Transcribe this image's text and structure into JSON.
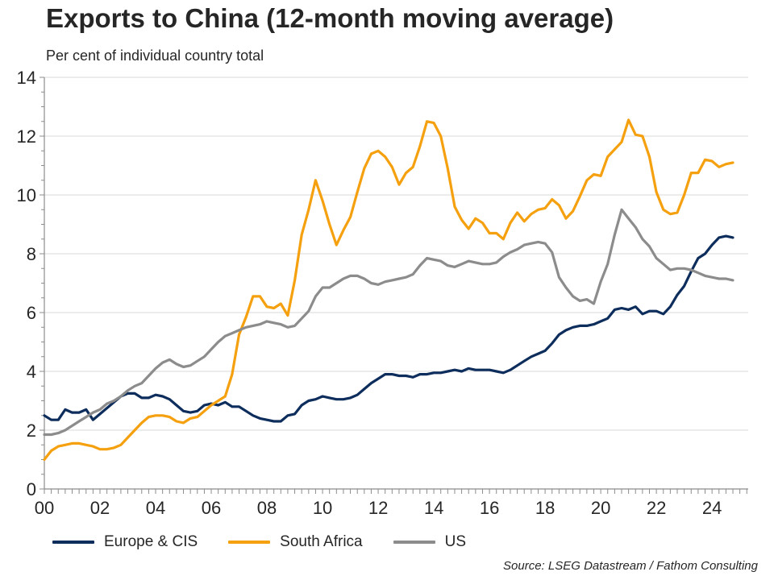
{
  "title": "Exports to China (12-month moving average)",
  "subtitle": "Per cent of individual country total",
  "source": "Source: LSEG Datastream / Fathom Consulting",
  "colors": {
    "europe": "#0d2d5c",
    "south_africa": "#f5a00f",
    "us": "#8c8c8c",
    "grid": "#d9d9d9",
    "axis": "#8c8c8c",
    "text": "#262626"
  },
  "chart_data": {
    "type": "line",
    "title": "Exports to China (12-month moving average)",
    "subtitle": "Per cent of individual country total",
    "xlabel": "",
    "ylabel": "",
    "ylim": [
      0,
      14
    ],
    "xlim": [
      2000,
      2025.3
    ],
    "yticks": [
      "0",
      "2",
      "4",
      "6",
      "8",
      "10",
      "12",
      "14"
    ],
    "xticks": [
      "00",
      "02",
      "04",
      "06",
      "08",
      "10",
      "12",
      "14",
      "16",
      "18",
      "20",
      "22",
      "24"
    ],
    "grid": "horizontal",
    "legend": "bottom",
    "series": [
      {
        "name": "Europe & CIS",
        "color": "#0d2d5c",
        "x": [
          2000.0,
          2000.25,
          2000.5,
          2000.75,
          2001.0,
          2001.25,
          2001.5,
          2001.75,
          2002.0,
          2002.25,
          2002.5,
          2002.75,
          2003.0,
          2003.25,
          2003.5,
          2003.75,
          2004.0,
          2004.25,
          2004.5,
          2004.75,
          2005.0,
          2005.25,
          2005.5,
          2005.75,
          2006.0,
          2006.25,
          2006.5,
          2006.75,
          2007.0,
          2007.25,
          2007.5,
          2007.75,
          2008.0,
          2008.25,
          2008.5,
          2008.75,
          2009.0,
          2009.25,
          2009.5,
          2009.75,
          2010.0,
          2010.25,
          2010.5,
          2010.75,
          2011.0,
          2011.25,
          2011.5,
          2011.75,
          2012.0,
          2012.25,
          2012.5,
          2012.75,
          2013.0,
          2013.25,
          2013.5,
          2013.75,
          2014.0,
          2014.25,
          2014.5,
          2014.75,
          2015.0,
          2015.25,
          2015.5,
          2015.75,
          2016.0,
          2016.25,
          2016.5,
          2016.75,
          2017.0,
          2017.25,
          2017.5,
          2017.75,
          2018.0,
          2018.25,
          2018.5,
          2018.75,
          2019.0,
          2019.25,
          2019.5,
          2019.75,
          2020.0,
          2020.25,
          2020.5,
          2020.75,
          2021.0,
          2021.25,
          2021.5,
          2021.75,
          2022.0,
          2022.25,
          2022.5,
          2022.75,
          2023.0,
          2023.25,
          2023.5,
          2023.75,
          2024.0,
          2024.25,
          2024.5,
          2024.75
        ],
        "values": [
          2.5,
          2.35,
          2.35,
          2.7,
          2.6,
          2.6,
          2.7,
          2.35,
          2.55,
          2.75,
          2.95,
          3.15,
          3.25,
          3.25,
          3.1,
          3.1,
          3.2,
          3.15,
          3.05,
          2.85,
          2.65,
          2.6,
          2.65,
          2.85,
          2.9,
          2.85,
          2.95,
          2.8,
          2.8,
          2.65,
          2.5,
          2.4,
          2.35,
          2.3,
          2.3,
          2.5,
          2.55,
          2.85,
          3.0,
          3.05,
          3.15,
          3.1,
          3.05,
          3.05,
          3.1,
          3.2,
          3.4,
          3.6,
          3.75,
          3.9,
          3.9,
          3.85,
          3.85,
          3.8,
          3.9,
          3.9,
          3.95,
          3.95,
          4.0,
          4.05,
          4.0,
          4.1,
          4.05,
          4.05,
          4.05,
          4.0,
          3.95,
          4.05,
          4.2,
          4.35,
          4.5,
          4.6,
          4.7,
          4.95,
          5.25,
          5.4,
          5.5,
          5.55,
          5.55,
          5.6,
          5.7,
          5.8,
          6.1,
          6.15,
          6.1,
          6.2,
          5.95,
          6.05,
          6.05,
          5.95,
          6.2,
          6.6,
          6.9,
          7.4,
          7.85,
          8.0,
          8.3,
          8.55,
          8.6,
          8.55
        ]
      },
      {
        "name": "South Africa",
        "color": "#f5a00f",
        "x": [
          2000.0,
          2000.25,
          2000.5,
          2000.75,
          2001.0,
          2001.25,
          2001.5,
          2001.75,
          2002.0,
          2002.25,
          2002.5,
          2002.75,
          2003.0,
          2003.25,
          2003.5,
          2003.75,
          2004.0,
          2004.25,
          2004.5,
          2004.75,
          2005.0,
          2005.25,
          2005.5,
          2005.75,
          2006.0,
          2006.25,
          2006.5,
          2006.75,
          2007.0,
          2007.25,
          2007.5,
          2007.75,
          2008.0,
          2008.25,
          2008.5,
          2008.75,
          2009.0,
          2009.25,
          2009.5,
          2009.75,
          2010.0,
          2010.25,
          2010.5,
          2010.75,
          2011.0,
          2011.25,
          2011.5,
          2011.75,
          2012.0,
          2012.25,
          2012.5,
          2012.75,
          2013.0,
          2013.25,
          2013.5,
          2013.75,
          2014.0,
          2014.25,
          2014.5,
          2014.75,
          2015.0,
          2015.25,
          2015.5,
          2015.75,
          2016.0,
          2016.25,
          2016.5,
          2016.75,
          2017.0,
          2017.25,
          2017.5,
          2017.75,
          2018.0,
          2018.25,
          2018.5,
          2018.75,
          2019.0,
          2019.25,
          2019.5,
          2019.75,
          2020.0,
          2020.25,
          2020.5,
          2020.75,
          2021.0,
          2021.25,
          2021.5,
          2021.75,
          2022.0,
          2022.25,
          2022.5,
          2022.75,
          2023.0,
          2023.25,
          2023.5,
          2023.75,
          2024.0,
          2024.25,
          2024.5,
          2024.75
        ],
        "values": [
          1.0,
          1.3,
          1.45,
          1.5,
          1.55,
          1.55,
          1.5,
          1.45,
          1.35,
          1.35,
          1.4,
          1.5,
          1.75,
          2.0,
          2.25,
          2.45,
          2.5,
          2.5,
          2.45,
          2.3,
          2.25,
          2.4,
          2.45,
          2.65,
          2.85,
          3.0,
          3.15,
          3.9,
          5.25,
          5.85,
          6.55,
          6.55,
          6.2,
          6.15,
          6.3,
          5.9,
          7.1,
          8.65,
          9.5,
          10.5,
          9.8,
          9.0,
          8.3,
          8.8,
          9.25,
          10.1,
          10.9,
          11.4,
          11.5,
          11.3,
          10.95,
          10.35,
          10.75,
          10.95,
          11.65,
          12.5,
          12.45,
          12.0,
          10.9,
          9.6,
          9.15,
          8.85,
          9.2,
          9.05,
          8.7,
          8.7,
          8.5,
          9.05,
          9.4,
          9.1,
          9.35,
          9.5,
          9.55,
          9.85,
          9.65,
          9.2,
          9.45,
          9.95,
          10.5,
          10.7,
          10.65,
          11.3,
          11.55,
          11.8,
          12.55,
          12.05,
          12.0,
          11.3,
          10.1,
          9.5,
          9.35,
          9.4,
          10.0,
          10.75,
          10.75,
          11.2,
          11.15,
          10.95,
          11.05,
          11.1
        ]
      },
      {
        "name": "US",
        "color": "#8c8c8c",
        "x": [
          2000.0,
          2000.25,
          2000.5,
          2000.75,
          2001.0,
          2001.25,
          2001.5,
          2001.75,
          2002.0,
          2002.25,
          2002.5,
          2002.75,
          2003.0,
          2003.25,
          2003.5,
          2003.75,
          2004.0,
          2004.25,
          2004.5,
          2004.75,
          2005.0,
          2005.25,
          2005.5,
          2005.75,
          2006.0,
          2006.25,
          2006.5,
          2006.75,
          2007.0,
          2007.25,
          2007.5,
          2007.75,
          2008.0,
          2008.25,
          2008.5,
          2008.75,
          2009.0,
          2009.25,
          2009.5,
          2009.75,
          2010.0,
          2010.25,
          2010.5,
          2010.75,
          2011.0,
          2011.25,
          2011.5,
          2011.75,
          2012.0,
          2012.25,
          2012.5,
          2012.75,
          2013.0,
          2013.25,
          2013.5,
          2013.75,
          2014.0,
          2014.25,
          2014.5,
          2014.75,
          2015.0,
          2015.25,
          2015.5,
          2015.75,
          2016.0,
          2016.25,
          2016.5,
          2016.75,
          2017.0,
          2017.25,
          2017.5,
          2017.75,
          2018.0,
          2018.25,
          2018.5,
          2018.75,
          2019.0,
          2019.25,
          2019.5,
          2019.75,
          2020.0,
          2020.25,
          2020.5,
          2020.75,
          2021.0,
          2021.25,
          2021.5,
          2021.75,
          2022.0,
          2022.25,
          2022.5,
          2022.75,
          2023.0,
          2023.25,
          2023.5,
          2023.75,
          2024.0,
          2024.25,
          2024.5,
          2024.75
        ],
        "values": [
          1.85,
          1.85,
          1.9,
          2.0,
          2.15,
          2.3,
          2.45,
          2.6,
          2.7,
          2.9,
          3.0,
          3.15,
          3.35,
          3.5,
          3.6,
          3.85,
          4.1,
          4.3,
          4.4,
          4.25,
          4.15,
          4.2,
          4.35,
          4.5,
          4.75,
          5.0,
          5.2,
          5.3,
          5.4,
          5.5,
          5.55,
          5.6,
          5.7,
          5.65,
          5.6,
          5.5,
          5.55,
          5.8,
          6.05,
          6.55,
          6.85,
          6.85,
          7.0,
          7.15,
          7.25,
          7.25,
          7.15,
          7.0,
          6.95,
          7.05,
          7.1,
          7.15,
          7.2,
          7.3,
          7.6,
          7.85,
          7.8,
          7.75,
          7.6,
          7.55,
          7.65,
          7.75,
          7.7,
          7.65,
          7.65,
          7.7,
          7.9,
          8.05,
          8.15,
          8.3,
          8.35,
          8.4,
          8.35,
          8.05,
          7.2,
          6.85,
          6.55,
          6.4,
          6.45,
          6.3,
          7.05,
          7.65,
          8.65,
          9.5,
          9.2,
          8.9,
          8.5,
          8.25,
          7.85,
          7.65,
          7.45,
          7.5,
          7.5,
          7.45,
          7.35,
          7.25,
          7.2,
          7.15,
          7.15,
          7.1
        ]
      }
    ]
  }
}
